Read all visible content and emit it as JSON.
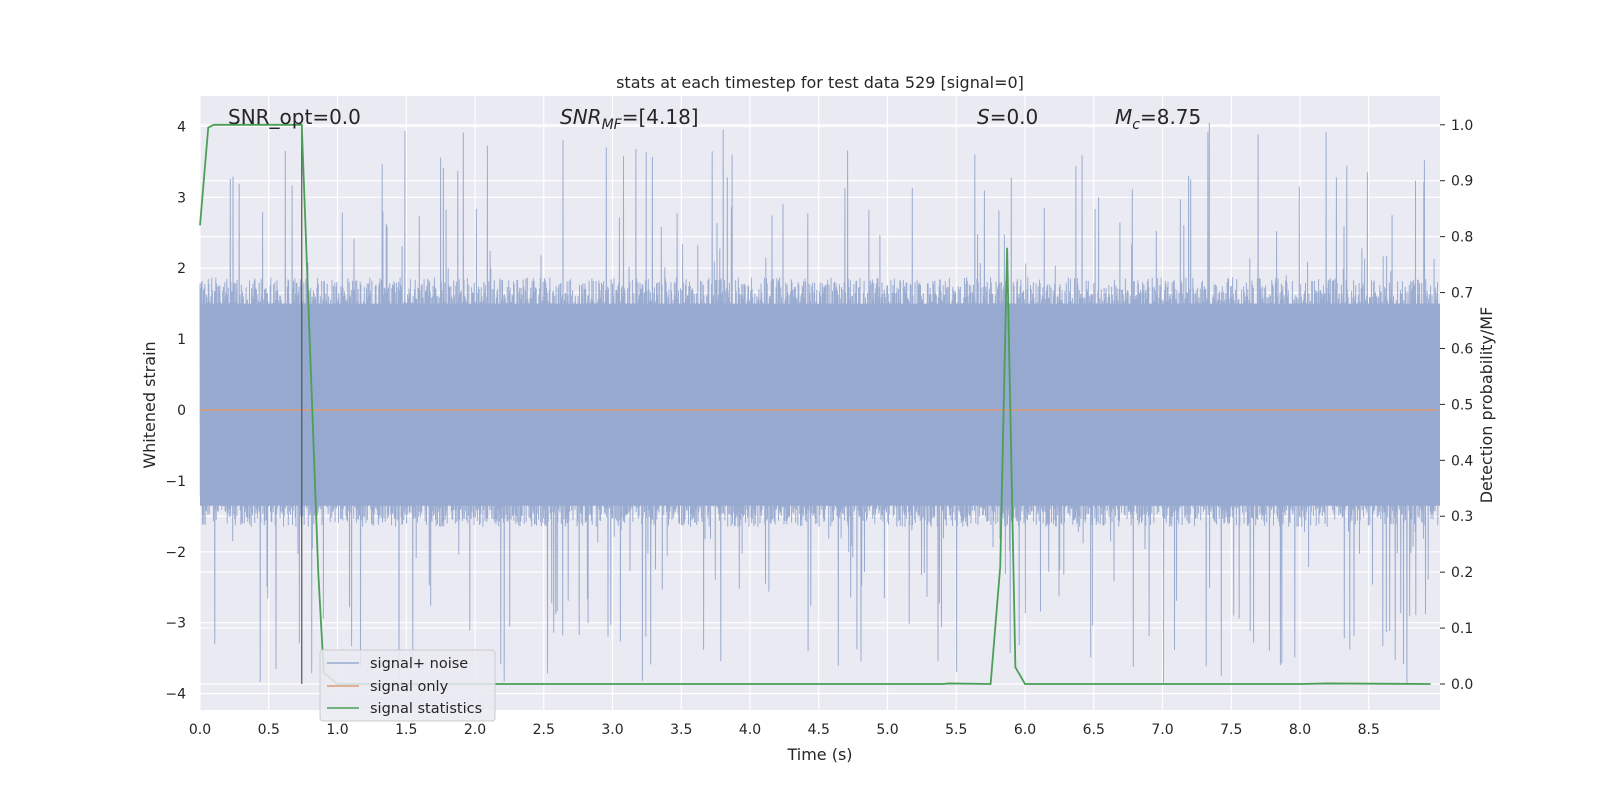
{
  "chart_data": {
    "type": "line",
    "title": "stats at each timestep for test data 529 [signal=0]",
    "xlabel": "Time (s)",
    "ylabel": "Whitened strain",
    "ylabel_right": "Detection probability/MF",
    "xlim": [
      0.0,
      9.0
    ],
    "ylim": [
      -4.3,
      4.4
    ],
    "ylim_right": [
      -0.05,
      1.05
    ],
    "x_ticks": [
      "0.0",
      "0.5",
      "1.0",
      "1.5",
      "2.0",
      "2.5",
      "3.0",
      "3.5",
      "4.0",
      "4.5",
      "5.0",
      "5.5",
      "6.0",
      "6.5",
      "7.0",
      "7.5",
      "8.0",
      "8.5"
    ],
    "y_ticks": [
      "4",
      "3",
      "2",
      "1",
      "0",
      "−1",
      "−2",
      "−3",
      "−4"
    ],
    "y_ticks_right": [
      "1.0",
      "0.9",
      "0.8",
      "0.7",
      "0.6",
      "0.5",
      "0.4",
      "0.3",
      "0.2",
      "0.1",
      "0.0"
    ],
    "grid": true,
    "legend_position": "lower-left",
    "annotations": {
      "snr_opt": "SNR_opt=0.0",
      "snr_mf_prefix": "SNR",
      "snr_mf_sub": "MF",
      "snr_mf_value": "=[4.18]",
      "s_symbol": "S",
      "s_value": "=0.0",
      "mc_symbol": "M",
      "mc_sub": "c",
      "mc_value": "=8.75"
    },
    "marker_line_x": 0.74,
    "series": [
      {
        "name": "signal+ noise",
        "color": "#97a9cf",
        "noise_envelope": {
          "typical_upper": 1.7,
          "typical_lower": -1.5,
          "max": 4.0,
          "min": -3.9
        }
      },
      {
        "name": "signal only",
        "color": "#dd9a77",
        "x": [
          0.0,
          9.0
        ],
        "y": [
          0.0,
          0.0
        ]
      },
      {
        "name": "signal statistics",
        "color": "#4c9f56",
        "axis": "right",
        "x": [
          0.0,
          0.06,
          0.1,
          0.2,
          0.4,
          0.6,
          0.72,
          0.74,
          0.8,
          0.86,
          0.9,
          1.0,
          5.4,
          5.45,
          5.75,
          5.82,
          5.87,
          5.93,
          6.0,
          7.0,
          8.0,
          8.2,
          8.95
        ],
        "y": [
          0.82,
          0.995,
          1.0,
          1.0,
          1.0,
          1.0,
          1.0,
          1.0,
          0.6,
          0.2,
          0.02,
          0.0,
          0.0,
          0.001,
          0.0,
          0.21,
          0.78,
          0.03,
          0.0,
          0.0,
          0.0,
          0.001,
          0.0
        ]
      }
    ]
  }
}
